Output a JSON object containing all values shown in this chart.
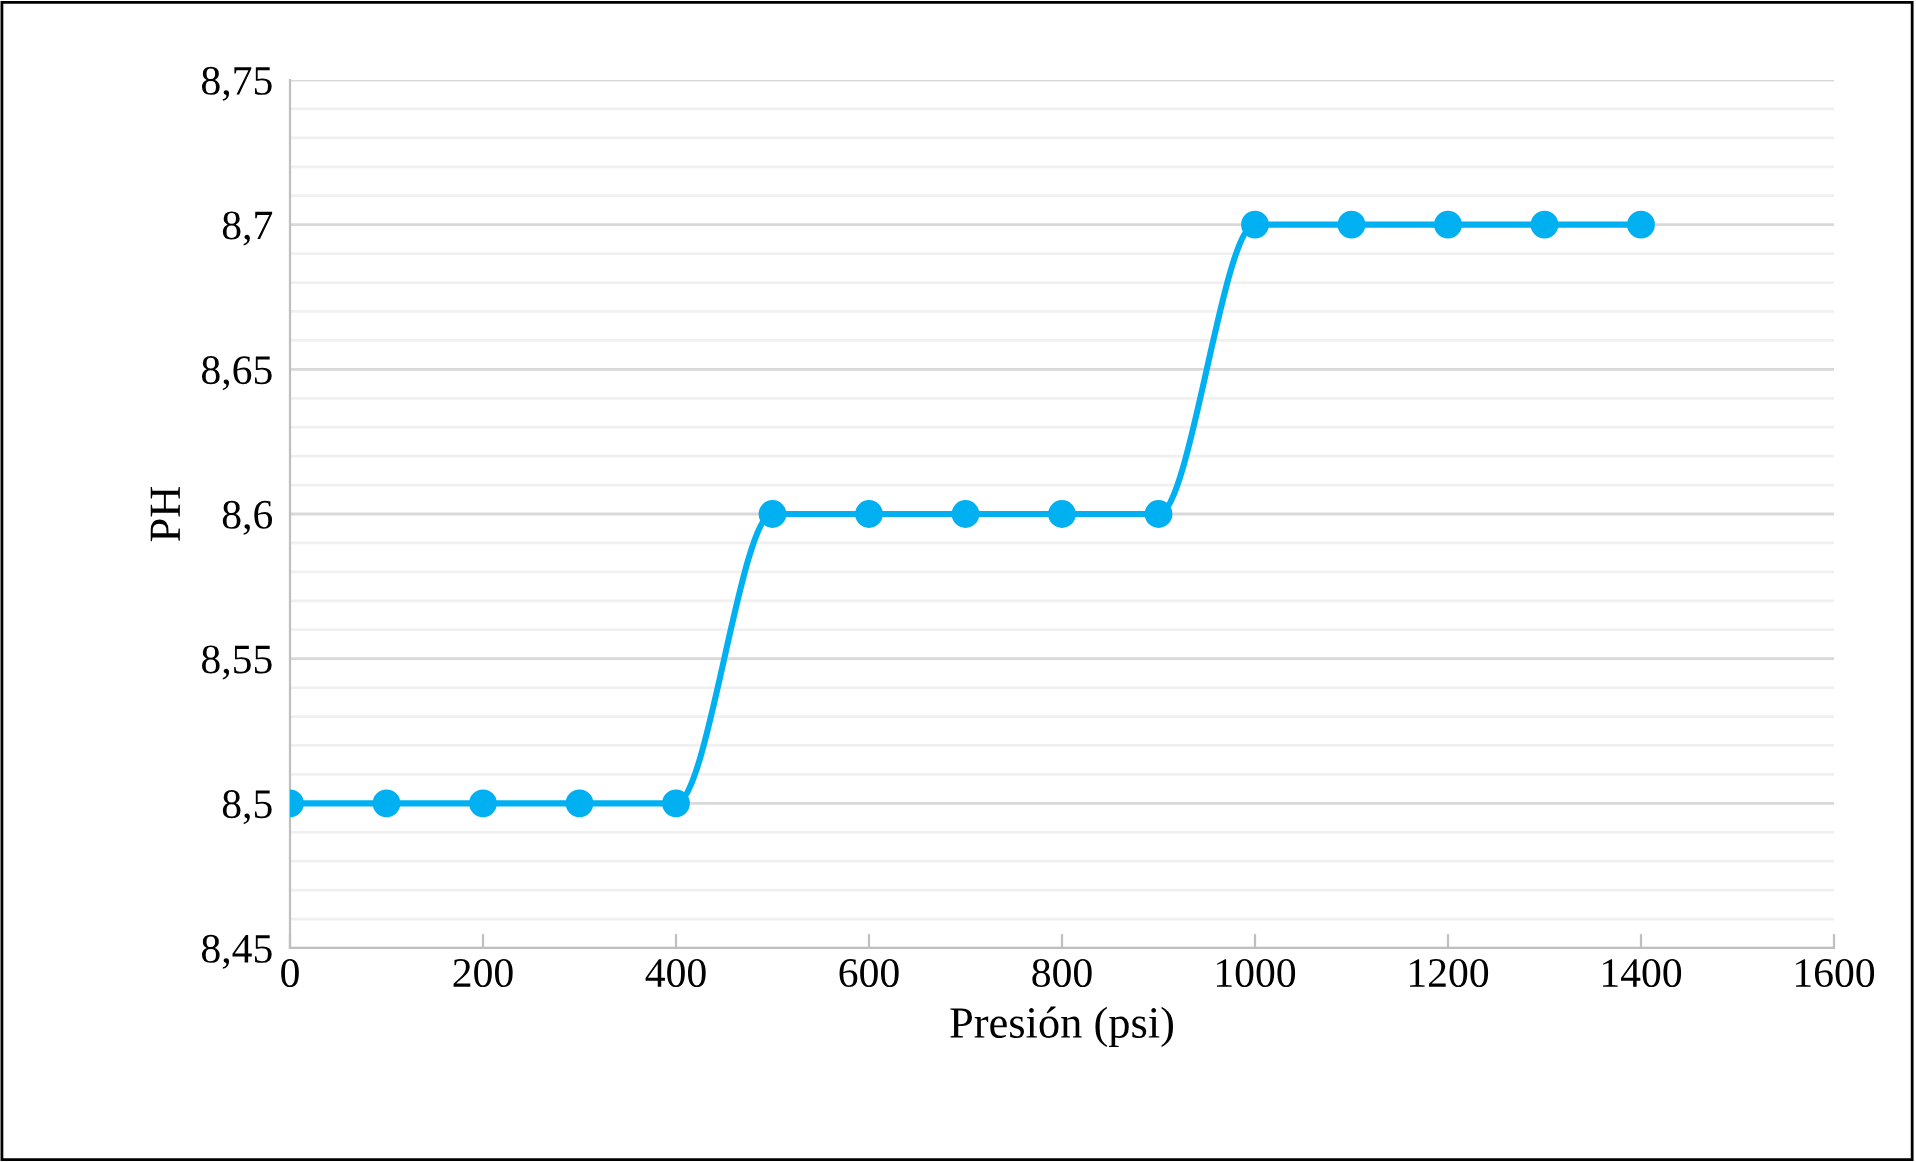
{
  "chart_data": {
    "type": "line",
    "xlabel": "Presión (psi)",
    "ylabel": "PH",
    "x": [
      0,
      100,
      200,
      300,
      400,
      500,
      600,
      700,
      800,
      900,
      1000,
      1100,
      1200,
      1300,
      1400
    ],
    "series": [
      {
        "color": "#00b0f0",
        "values": [
          8.5,
          8.5,
          8.5,
          8.5,
          8.5,
          8.6,
          8.6,
          8.6,
          8.6,
          8.6,
          8.7,
          8.7,
          8.7,
          8.7,
          8.7
        ]
      }
    ],
    "xlim": [
      0,
      1600
    ],
    "xticks": [
      0,
      200,
      400,
      600,
      800,
      1000,
      1200,
      1400,
      1600
    ],
    "ylim": [
      8.45,
      8.75
    ],
    "yticks": [
      {
        "value": 8.45,
        "label": "8,45"
      },
      {
        "value": 8.46,
        "label": null
      },
      {
        "value": 8.47,
        "label": null
      },
      {
        "value": 8.48,
        "label": null
      },
      {
        "value": 8.49,
        "label": null
      },
      {
        "value": 8.5,
        "label": "8,5"
      },
      {
        "value": 8.51,
        "label": null
      },
      {
        "value": 8.52,
        "label": null
      },
      {
        "value": 8.53,
        "label": null
      },
      {
        "value": 8.54,
        "label": null
      },
      {
        "value": 8.55,
        "label": "8,55"
      },
      {
        "value": 8.56,
        "label": null
      },
      {
        "value": 8.57,
        "label": null
      },
      {
        "value": 8.58,
        "label": null
      },
      {
        "value": 8.59,
        "label": null
      },
      {
        "value": 8.6,
        "label": "8,6"
      },
      {
        "value": 8.61,
        "label": null
      },
      {
        "value": 8.62,
        "label": null
      },
      {
        "value": 8.63,
        "label": null
      },
      {
        "value": 8.64,
        "label": null
      },
      {
        "value": 8.65,
        "label": "8,65"
      },
      {
        "value": 8.66,
        "label": null
      },
      {
        "value": 8.67,
        "label": null
      },
      {
        "value": 8.68,
        "label": null
      },
      {
        "value": 8.69,
        "label": null
      },
      {
        "value": 8.7,
        "label": "8,7"
      },
      {
        "value": 8.71,
        "label": null
      },
      {
        "value": 8.72,
        "label": null
      },
      {
        "value": 8.73,
        "label": null
      },
      {
        "value": 8.74,
        "label": null
      },
      {
        "value": 8.75,
        "label": "8,75"
      }
    ],
    "grid": "y",
    "marker": "circle",
    "line_style": "solid",
    "legend": false
  }
}
